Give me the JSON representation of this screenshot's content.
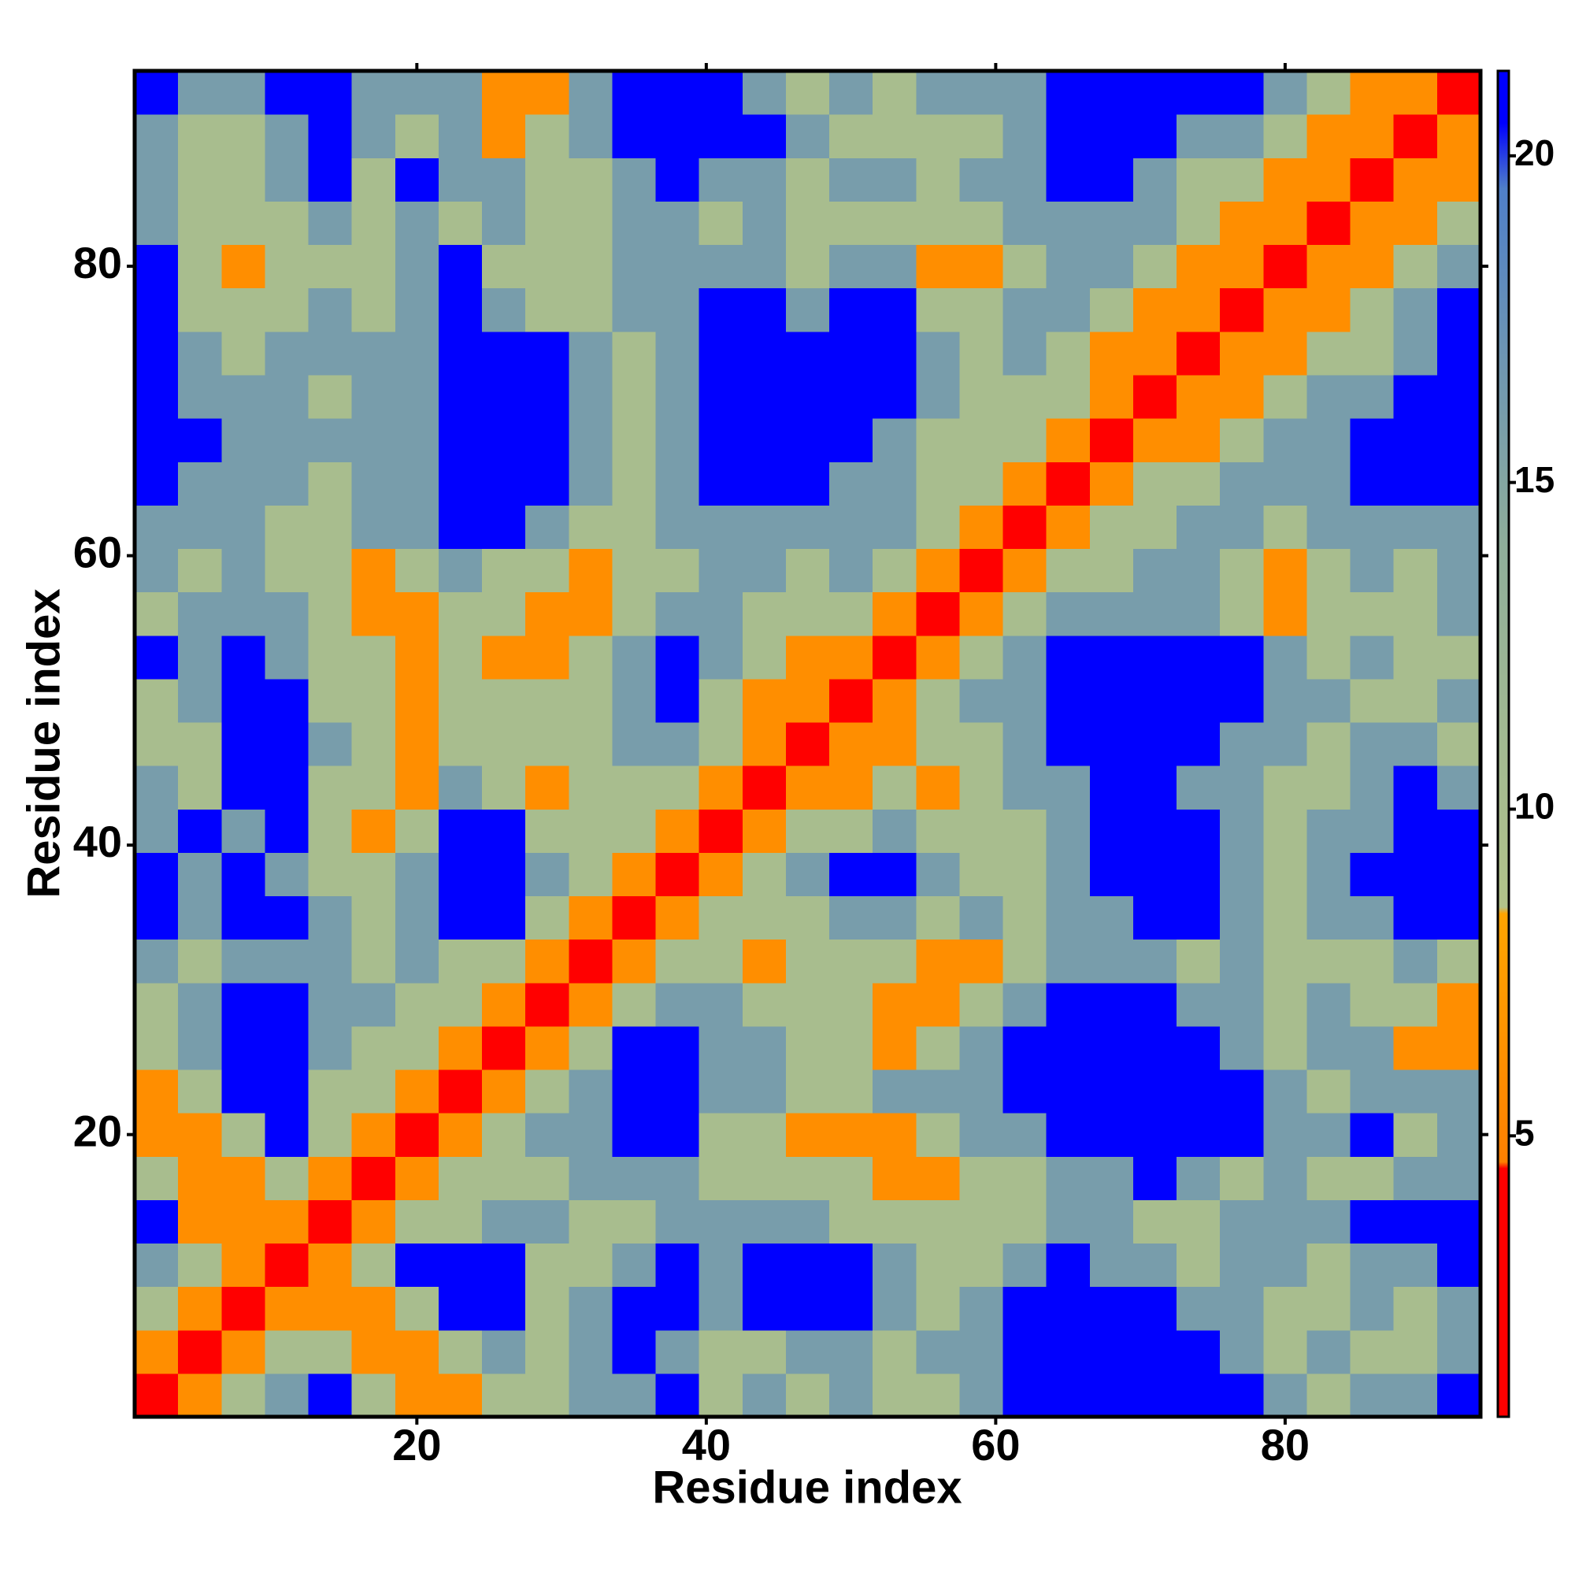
{
  "chart_data": {
    "type": "heatmap",
    "x_label": "Residue index",
    "y_label": "Residue index",
    "xlim": [
      0.5,
      93.5
    ],
    "ylim": [
      0.5,
      93.5
    ],
    "xticks": [
      20,
      40,
      60,
      80
    ],
    "yticks": [
      20,
      40,
      60,
      80
    ],
    "xbins": [
      0.5,
      3.5,
      6.5,
      9.5,
      12.5,
      15.5,
      18.5,
      21.5,
      24.5,
      27.5,
      30.5,
      33.5,
      36.5,
      39.5,
      42.5,
      45.5,
      48.5,
      51.5,
      54.5,
      57.5,
      60.5,
      63.5,
      66.5,
      69.5,
      72.5,
      75.5,
      78.5,
      81.5,
      84.5,
      87.5,
      90.5,
      93.5
    ],
    "ybins": [
      0.5,
      3.5,
      6.5,
      9.5,
      12.5,
      15.5,
      18.5,
      21.5,
      24.5,
      27.5,
      30.5,
      33.5,
      36.5,
      39.5,
      42.5,
      45.5,
      48.5,
      51.5,
      54.5,
      57.5,
      60.5,
      63.5,
      66.5,
      69.5,
      72.5,
      75.5,
      78.5,
      81.5,
      84.5,
      87.5,
      90.5,
      93.5
    ],
    "zlim": [
      0.7,
      21.3
    ],
    "zticks": [
      5,
      10,
      15,
      20
    ],
    "colorscale": [
      [
        0.7,
        "#ff0000"
      ],
      [
        4.5,
        "#ff0000"
      ],
      [
        4.6,
        "#ff8000"
      ],
      [
        8.4,
        "#ffa500"
      ],
      [
        8.5,
        "#b2c38a"
      ],
      [
        14,
        "#8fae9a"
      ],
      [
        19.5,
        "#4f7fc8"
      ],
      [
        20.5,
        "#0000ff"
      ],
      [
        21.3,
        "#0000ff"
      ]
    ],
    "z": [
      [
        2,
        6,
        10,
        16,
        21,
        10,
        6,
        6,
        10,
        10,
        16,
        16,
        21,
        10,
        16,
        10,
        16,
        10,
        10,
        16,
        21,
        21,
        21,
        21,
        21,
        21,
        16,
        10,
        16,
        16,
        21
      ],
      [
        6,
        2,
        6,
        10,
        10,
        6,
        6,
        10,
        16,
        10,
        16,
        21,
        16,
        10,
        10,
        16,
        16,
        10,
        16,
        16,
        21,
        21,
        21,
        21,
        21,
        16,
        10,
        16,
        10,
        10,
        16
      ],
      [
        10,
        6,
        2,
        6,
        6,
        6,
        10,
        21,
        21,
        10,
        16,
        21,
        21,
        16,
        21,
        21,
        21,
        16,
        10,
        16,
        21,
        21,
        21,
        21,
        16,
        16,
        10,
        10,
        16,
        10,
        16
      ],
      [
        16,
        10,
        6,
        2,
        6,
        10,
        21,
        21,
        21,
        10,
        10,
        16,
        21,
        16,
        21,
        21,
        21,
        16,
        10,
        10,
        16,
        21,
        16,
        16,
        10,
        16,
        16,
        10,
        16,
        16,
        21
      ],
      [
        21,
        6,
        6,
        6,
        2,
        6,
        10,
        10,
        16,
        16,
        10,
        10,
        16,
        16,
        16,
        16,
        10,
        10,
        10,
        10,
        10,
        16,
        16,
        10,
        10,
        16,
        16,
        16,
        21,
        21,
        21
      ],
      [
        10,
        6,
        6,
        10,
        6,
        2,
        6,
        10,
        10,
        10,
        16,
        16,
        16,
        10,
        10,
        10,
        10,
        6,
        6,
        10,
        10,
        16,
        16,
        21,
        16,
        10,
        16,
        10,
        10,
        16,
        16
      ],
      [
        6,
        6,
        10,
        21,
        10,
        6,
        2,
        6,
        10,
        16,
        16,
        21,
        21,
        10,
        10,
        6,
        6,
        6,
        10,
        16,
        16,
        21,
        21,
        21,
        21,
        21,
        16,
        16,
        21,
        10,
        16
      ],
      [
        6,
        10,
        21,
        21,
        10,
        10,
        6,
        2,
        6,
        10,
        16,
        21,
        21,
        16,
        16,
        10,
        10,
        16,
        16,
        16,
        21,
        21,
        21,
        21,
        21,
        21,
        16,
        10,
        16,
        16,
        16
      ],
      [
        10,
        16,
        21,
        21,
        16,
        10,
        10,
        6,
        2,
        6,
        10,
        21,
        21,
        16,
        16,
        10,
        10,
        6,
        10,
        16,
        21,
        21,
        21,
        21,
        21,
        16,
        10,
        16,
        16,
        6,
        6
      ],
      [
        10,
        16,
        21,
        21,
        16,
        16,
        10,
        10,
        6,
        2,
        6,
        10,
        16,
        16,
        10,
        10,
        10,
        6,
        6,
        10,
        16,
        21,
        21,
        21,
        16,
        16,
        10,
        16,
        10,
        10,
        6
      ],
      [
        16,
        10,
        16,
        16,
        16,
        10,
        16,
        10,
        10,
        6,
        2,
        6,
        10,
        10,
        6,
        10,
        10,
        10,
        6,
        6,
        10,
        16,
        16,
        16,
        10,
        16,
        10,
        10,
        10,
        16,
        10
      ],
      [
        21,
        16,
        21,
        21,
        16,
        10,
        16,
        21,
        21,
        10,
        6,
        2,
        6,
        10,
        10,
        10,
        16,
        16,
        10,
        16,
        10,
        16,
        16,
        21,
        21,
        16,
        10,
        16,
        16,
        21,
        21
      ],
      [
        21,
        16,
        21,
        16,
        10,
        10,
        16,
        21,
        21,
        16,
        10,
        6,
        2,
        6,
        10,
        16,
        21,
        21,
        16,
        10,
        10,
        16,
        21,
        21,
        21,
        16,
        10,
        16,
        21,
        21,
        21
      ],
      [
        16,
        21,
        16,
        21,
        10,
        6,
        10,
        21,
        21,
        10,
        10,
        10,
        6,
        2,
        6,
        10,
        10,
        16,
        10,
        10,
        10,
        16,
        21,
        21,
        21,
        16,
        10,
        16,
        16,
        21,
        21
      ],
      [
        16,
        10,
        21,
        21,
        10,
        10,
        6,
        16,
        10,
        6,
        10,
        10,
        10,
        6,
        2,
        6,
        6,
        10,
        6,
        10,
        16,
        16,
        21,
        21,
        16,
        16,
        10,
        10,
        16,
        21,
        16
      ],
      [
        10,
        10,
        21,
        21,
        16,
        10,
        6,
        10,
        10,
        10,
        10,
        16,
        16,
        10,
        6,
        2,
        6,
        6,
        10,
        10,
        16,
        21,
        21,
        21,
        21,
        16,
        16,
        10,
        16,
        16,
        10
      ],
      [
        10,
        16,
        21,
        21,
        10,
        10,
        6,
        10,
        10,
        10,
        10,
        16,
        21,
        10,
        6,
        6,
        2,
        6,
        10,
        16,
        16,
        21,
        21,
        21,
        21,
        21,
        16,
        16,
        10,
        10,
        16
      ],
      [
        21,
        16,
        21,
        16,
        10,
        10,
        6,
        10,
        6,
        6,
        10,
        16,
        21,
        16,
        10,
        6,
        6,
        2,
        6,
        10,
        16,
        21,
        21,
        21,
        21,
        21,
        16,
        10,
        16,
        10,
        10
      ],
      [
        10,
        16,
        16,
        16,
        10,
        6,
        6,
        10,
        10,
        6,
        6,
        10,
        16,
        16,
        10,
        10,
        10,
        6,
        2,
        6,
        10,
        16,
        16,
        16,
        16,
        10,
        6,
        10,
        10,
        10,
        16
      ],
      [
        16,
        10,
        16,
        10,
        10,
        6,
        10,
        16,
        10,
        10,
        6,
        10,
        10,
        16,
        16,
        10,
        16,
        10,
        6,
        2,
        6,
        10,
        10,
        16,
        16,
        10,
        6,
        10,
        16,
        10,
        16
      ],
      [
        16,
        16,
        16,
        10,
        10,
        16,
        16,
        21,
        21,
        16,
        10,
        10,
        16,
        16,
        16,
        16,
        16,
        16,
        10,
        6,
        2,
        6,
        10,
        10,
        16,
        16,
        10,
        16,
        16,
        16,
        16
      ],
      [
        21,
        16,
        16,
        16,
        10,
        16,
        16,
        21,
        21,
        21,
        16,
        10,
        16,
        21,
        21,
        21,
        16,
        16,
        10,
        10,
        6,
        2,
        6,
        10,
        10,
        16,
        16,
        16,
        21,
        21,
        21
      ],
      [
        21,
        21,
        16,
        16,
        16,
        16,
        16,
        21,
        21,
        21,
        16,
        10,
        16,
        21,
        21,
        21,
        21,
        16,
        10,
        10,
        10,
        6,
        2,
        6,
        6,
        10,
        16,
        16,
        21,
        21,
        21
      ],
      [
        21,
        16,
        16,
        16,
        10,
        16,
        16,
        21,
        21,
        21,
        16,
        10,
        16,
        21,
        21,
        21,
        21,
        21,
        16,
        10,
        10,
        10,
        6,
        2,
        6,
        6,
        10,
        16,
        16,
        21,
        21
      ],
      [
        21,
        16,
        10,
        16,
        16,
        16,
        16,
        21,
        21,
        21,
        16,
        10,
        16,
        21,
        21,
        21,
        21,
        21,
        16,
        10,
        16,
        10,
        6,
        6,
        2,
        6,
        6,
        10,
        10,
        16,
        21
      ],
      [
        21,
        10,
        10,
        10,
        16,
        10,
        16,
        21,
        16,
        10,
        10,
        16,
        16,
        21,
        21,
        16,
        21,
        21,
        10,
        10,
        16,
        16,
        10,
        6,
        6,
        2,
        6,
        6,
        10,
        16,
        21
      ],
      [
        21,
        10,
        6,
        10,
        10,
        10,
        16,
        21,
        10,
        10,
        10,
        16,
        16,
        16,
        16,
        10,
        16,
        16,
        6,
        6,
        10,
        16,
        16,
        10,
        6,
        6,
        2,
        6,
        6,
        10,
        16
      ],
      [
        16,
        10,
        10,
        10,
        16,
        10,
        16,
        10,
        16,
        10,
        10,
        16,
        16,
        10,
        16,
        10,
        10,
        10,
        10,
        10,
        16,
        16,
        16,
        16,
        10,
        6,
        6,
        2,
        6,
        6,
        10
      ],
      [
        16,
        10,
        10,
        16,
        21,
        10,
        21,
        16,
        16,
        10,
        10,
        16,
        21,
        16,
        16,
        10,
        16,
        16,
        10,
        16,
        16,
        21,
        21,
        16,
        10,
        10,
        6,
        6,
        2,
        6,
        6
      ],
      [
        16,
        10,
        10,
        16,
        21,
        16,
        10,
        16,
        6,
        10,
        16,
        21,
        21,
        21,
        21,
        16,
        10,
        10,
        10,
        10,
        16,
        21,
        21,
        21,
        16,
        16,
        10,
        6,
        6,
        2,
        6
      ],
      [
        21,
        16,
        16,
        21,
        21,
        16,
        16,
        16,
        6,
        6,
        16,
        21,
        21,
        21,
        16,
        10,
        16,
        10,
        16,
        16,
        16,
        21,
        21,
        21,
        21,
        21,
        16,
        10,
        6,
        6,
        2
      ]
    ]
  }
}
